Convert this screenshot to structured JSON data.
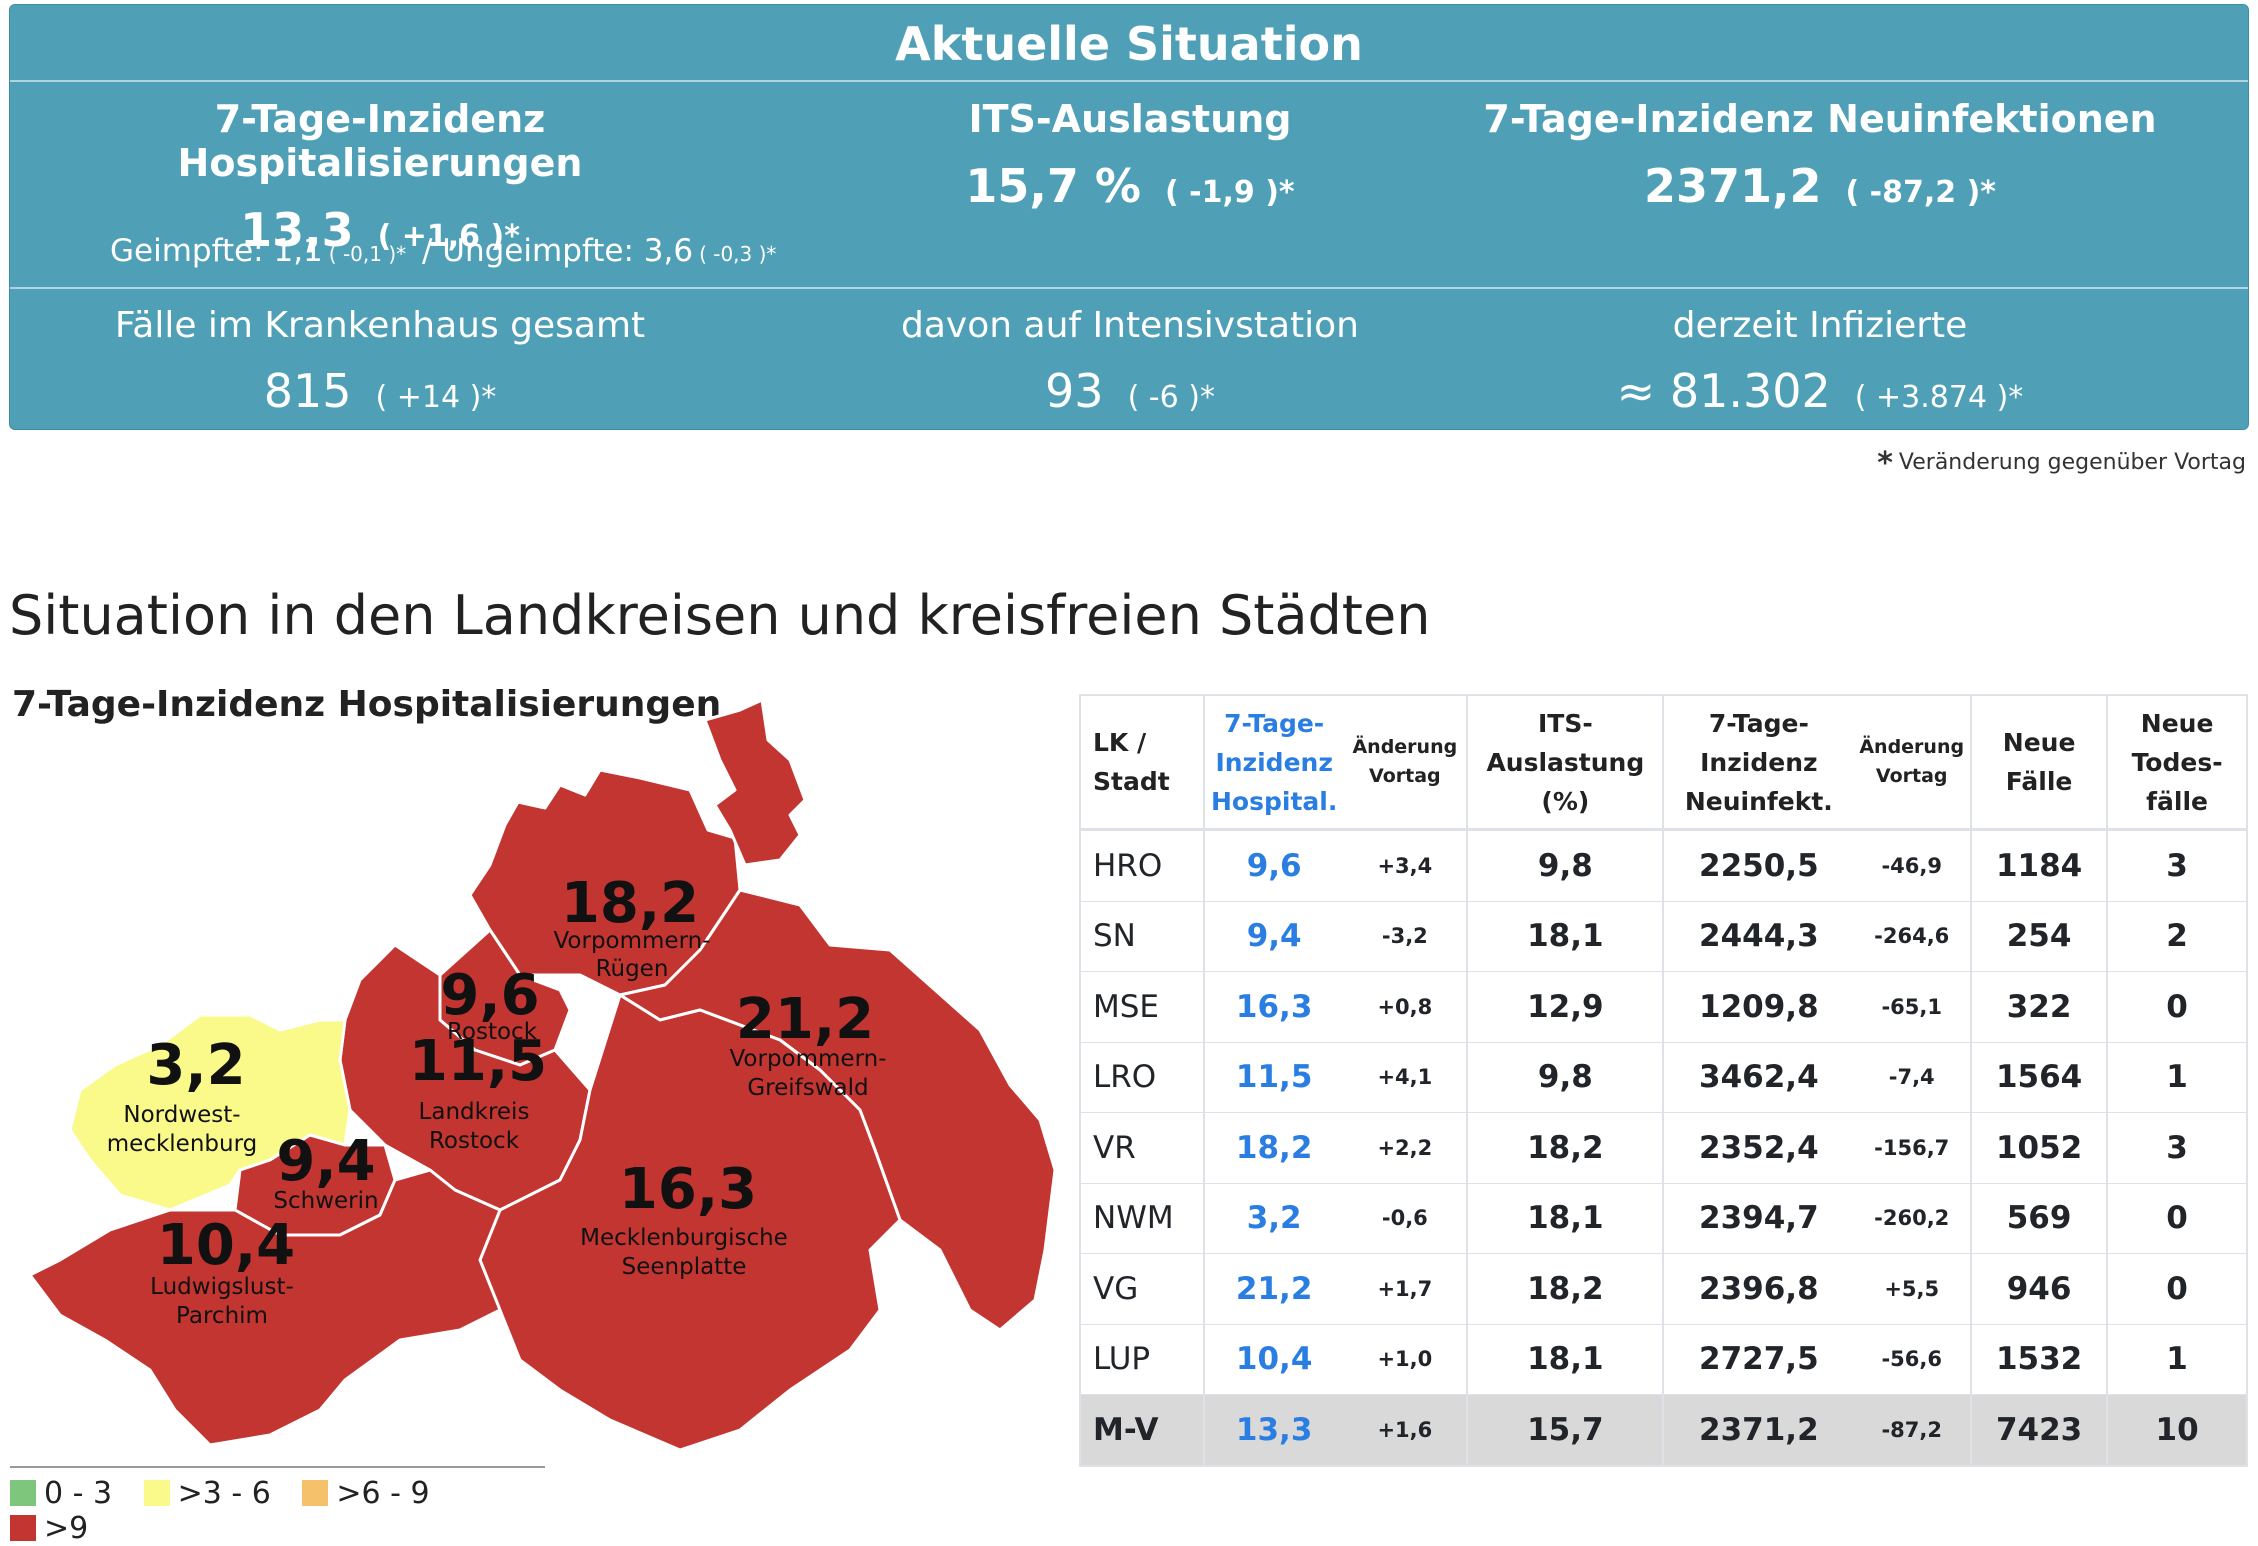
{
  "summary": {
    "title": "Aktuelle Situation",
    "hosp": {
      "title": "7-Tage-Inzidenz Hospitalisierungen",
      "value": "13,3",
      "change": "( +1,6 )*"
    },
    "its": {
      "title": "ITS-Auslastung",
      "value": "15,7 %",
      "change": "( -1,9 )*"
    },
    "neuinf": {
      "title": "7-Tage-Inzidenz Neuinfektionen",
      "value": "2371,2",
      "change": "( -87,2 )*"
    },
    "vacc": {
      "geimpfte_label": "Geimpfte: 1,1",
      "geimpfte_change": "( -0,1 )*",
      "sep": "/",
      "ungeimpfte_label": "Ungeimpfte: 3,6",
      "ungeimpfte_change": "( -0,3 )*"
    },
    "krankenhaus": {
      "title": "Fälle im Krankenhaus gesamt",
      "value": "815",
      "change": "( +14 )*"
    },
    "intensiv": {
      "title": "davon auf Intensivstation",
      "value": "93",
      "change": "( -6 )*"
    },
    "infizierte": {
      "title": "derzeit Infizierte",
      "value": "≈ 81.302",
      "change": "( +3.874 )*"
    },
    "footnote_star": "*",
    "footnote": "Veränderung gegenüber Vortag"
  },
  "section_title": "Situation in den Landkreisen und kreisfreien Städten",
  "map": {
    "title": "7-Tage-Inzidenz Hospitalisierungen",
    "colors": {
      "low": "#7dc67b",
      "mid": "#fafa8a",
      "high": "#f5c26b",
      "top": "#c23531",
      "border": "#ffffff"
    },
    "regions": [
      {
        "code": "VR",
        "value": "18,2",
        "name1": "Vorpommern-",
        "name2": "Rügen"
      },
      {
        "code": "HRO",
        "value": "9,6",
        "name1": "Rostock",
        "name2": ""
      },
      {
        "code": "LRO",
        "value": "11,5",
        "name1": "Landkreis",
        "name2": "Rostock"
      },
      {
        "code": "VG",
        "value": "21,2",
        "name1": "Vorpommern-",
        "name2": "Greifswald"
      },
      {
        "code": "NWM",
        "value": "3,2",
        "name1": "Nordwest-",
        "name2": "mecklenburg"
      },
      {
        "code": "SN",
        "value": "9,4",
        "name1": "Schwerin",
        "name2": ""
      },
      {
        "code": "MSE",
        "value": "16,3",
        "name1": "Mecklenburgische",
        "name2": "Seenplatte"
      },
      {
        "code": "LUP",
        "value": "10,4",
        "name1": "Ludwigslust-",
        "name2": "Parchim"
      }
    ],
    "legend": [
      {
        "label": "0 - 3",
        "color": "#7dc67b"
      },
      {
        "label": ">3 - 6",
        "color": "#fafa8a"
      },
      {
        "label": ">6 - 9",
        "color": "#f5c26b"
      },
      {
        "label": ">9",
        "color": "#c23531"
      }
    ]
  },
  "table": {
    "headers": {
      "lk": [
        "LK /",
        "Stadt"
      ],
      "hosp": [
        "7-Tage-",
        "Inzidenz",
        "Hospital."
      ],
      "aend": [
        "Änderung",
        "Vortag"
      ],
      "its": [
        "ITS-",
        "Auslastung",
        "(%)"
      ],
      "neuinf": [
        "7-Tage-",
        "Inzidenz",
        "Neuinfekt."
      ],
      "aend2": [
        "Änderung",
        "Vortag"
      ],
      "faelle": [
        "Neue",
        "Fälle"
      ],
      "tode": [
        "Neue",
        "Todes-",
        "fälle"
      ]
    },
    "rows": [
      {
        "lk": "HRO",
        "hosp": "9,6",
        "hosp_chg": "+3,4",
        "its": "9,8",
        "neuinf": "2250,5",
        "neuinf_chg": "-46,9",
        "faelle": "1184",
        "tode": "3"
      },
      {
        "lk": "SN",
        "hosp": "9,4",
        "hosp_chg": "-3,2",
        "its": "18,1",
        "neuinf": "2444,3",
        "neuinf_chg": "-264,6",
        "faelle": "254",
        "tode": "2"
      },
      {
        "lk": "MSE",
        "hosp": "16,3",
        "hosp_chg": "+0,8",
        "its": "12,9",
        "neuinf": "1209,8",
        "neuinf_chg": "-65,1",
        "faelle": "322",
        "tode": "0"
      },
      {
        "lk": "LRO",
        "hosp": "11,5",
        "hosp_chg": "+4,1",
        "its": "9,8",
        "neuinf": "3462,4",
        "neuinf_chg": "-7,4",
        "faelle": "1564",
        "tode": "1"
      },
      {
        "lk": "VR",
        "hosp": "18,2",
        "hosp_chg": "+2,2",
        "its": "18,2",
        "neuinf": "2352,4",
        "neuinf_chg": "-156,7",
        "faelle": "1052",
        "tode": "3"
      },
      {
        "lk": "NWM",
        "hosp": "3,2",
        "hosp_chg": "-0,6",
        "its": "18,1",
        "neuinf": "2394,7",
        "neuinf_chg": "-260,2",
        "faelle": "569",
        "tode": "0"
      },
      {
        "lk": "VG",
        "hosp": "21,2",
        "hosp_chg": "+1,7",
        "its": "18,2",
        "neuinf": "2396,8",
        "neuinf_chg": "+5,5",
        "faelle": "946",
        "tode": "0"
      },
      {
        "lk": "LUP",
        "hosp": "10,4",
        "hosp_chg": "+1,0",
        "its": "18,1",
        "neuinf": "2727,5",
        "neuinf_chg": "-56,6",
        "faelle": "1532",
        "tode": "1"
      }
    ],
    "total": {
      "lk": "M-V",
      "hosp": "13,3",
      "hosp_chg": "+1,6",
      "its": "15,7",
      "neuinf": "2371,2",
      "neuinf_chg": "-87,2",
      "faelle": "7423",
      "tode": "10"
    }
  }
}
